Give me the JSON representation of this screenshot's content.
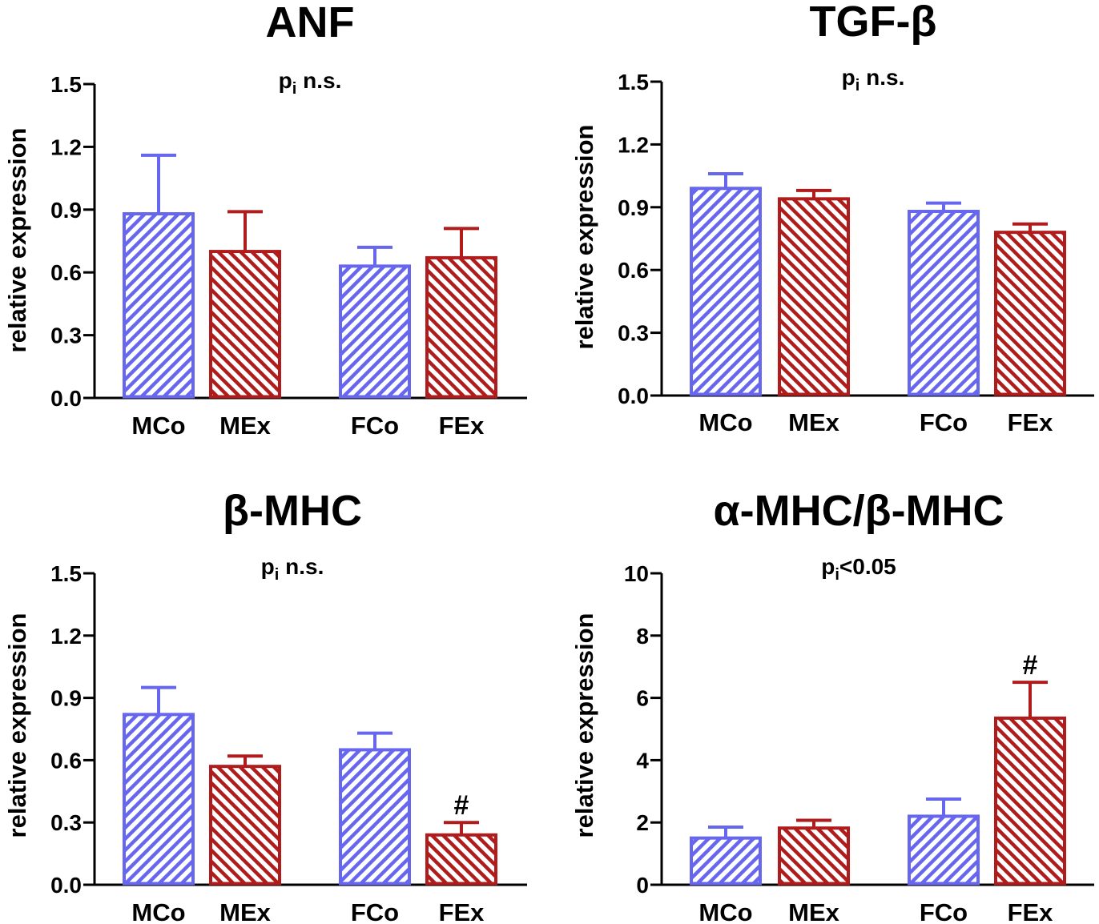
{
  "colors": {
    "control": "#6666ee",
    "exercise": "#b01c1c",
    "axis": "#000000"
  },
  "chart_data": [
    {
      "type": "bar",
      "title": "ANF",
      "annotation": {
        "p": "p",
        "sub": "i",
        "rest": " n.s."
      },
      "ylabel": "relative expression",
      "ylim": [
        0,
        1.5
      ],
      "yticks": [
        "0.0",
        "0.3",
        "0.6",
        "0.9",
        "1.2",
        "1.5"
      ],
      "categories": [
        "MCo",
        "MEx",
        "FCo",
        "FEx"
      ],
      "values": [
        0.88,
        0.7,
        0.63,
        0.67
      ],
      "errors": [
        0.28,
        0.19,
        0.09,
        0.14
      ],
      "markers": [
        "",
        "",
        "",
        ""
      ]
    },
    {
      "type": "bar",
      "title": "TGF-β",
      "annotation": {
        "p": "p",
        "sub": "i",
        "rest": " n.s."
      },
      "ylabel": "relative expression",
      "ylim": [
        0,
        1.5
      ],
      "yticks": [
        "0.0",
        "0.3",
        "0.6",
        "0.9",
        "1.2",
        "1.5"
      ],
      "categories": [
        "MCo",
        "MEx",
        "FCo",
        "FEx"
      ],
      "values": [
        0.99,
        0.94,
        0.88,
        0.78
      ],
      "errors": [
        0.07,
        0.04,
        0.04,
        0.04
      ],
      "markers": [
        "",
        "",
        "",
        ""
      ]
    },
    {
      "type": "bar",
      "title": "β-MHC",
      "annotation": {
        "p": "p",
        "sub": "i",
        "rest": " n.s."
      },
      "ylabel": "relative expression",
      "ylim": [
        0,
        1.5
      ],
      "yticks": [
        "0.0",
        "0.3",
        "0.6",
        "0.9",
        "1.2",
        "1.5"
      ],
      "categories": [
        "MCo",
        "MEx",
        "FCo",
        "FEx"
      ],
      "values": [
        0.82,
        0.57,
        0.65,
        0.24
      ],
      "errors": [
        0.13,
        0.05,
        0.08,
        0.06
      ],
      "markers": [
        "",
        "",
        "",
        "#"
      ]
    },
    {
      "type": "bar",
      "title": "α-MHC/β-MHC",
      "annotation": {
        "p": "p",
        "sub": "i",
        "rest": "<0.05"
      },
      "ylabel": "relative expression",
      "ylim": [
        0,
        10
      ],
      "yticks": [
        "0",
        "2",
        "4",
        "6",
        "8",
        "10"
      ],
      "categories": [
        "MCo",
        "MEx",
        "FCo",
        "FEx"
      ],
      "values": [
        1.5,
        1.82,
        2.2,
        5.35
      ],
      "errors": [
        0.35,
        0.25,
        0.55,
        1.15
      ],
      "markers": [
        "",
        "",
        "",
        "#"
      ]
    }
  ]
}
